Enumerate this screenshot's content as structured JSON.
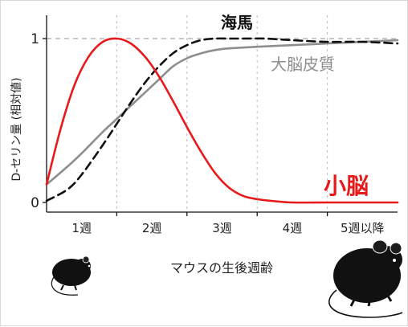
{
  "chart_data": {
    "type": "line",
    "xlabel": "マウスの生後週齢",
    "ylabel": "D-セリン量 (相対値)",
    "x_ticks": [
      "1週",
      "2週",
      "3週",
      "4週",
      "5週以降"
    ],
    "y_ticks": [
      "0",
      "1"
    ],
    "ylim": [
      0,
      1
    ],
    "xlim": [
      0.5,
      5.5
    ],
    "grid": "vertical dashed at week boundaries, horizontal dashed at y=1",
    "series": [
      {
        "name": "小脳",
        "color": "#e8191a",
        "style": "solid",
        "x": [
          0.5,
          0.7,
          0.9,
          1.1,
          1.3,
          1.5,
          1.7,
          1.9,
          2.1,
          2.3,
          2.5,
          2.7,
          2.9,
          3.1,
          3.3,
          3.5,
          3.7,
          4.0,
          4.5,
          5.0,
          5.5
        ],
        "y": [
          0.11,
          0.45,
          0.72,
          0.89,
          0.98,
          1.0,
          0.97,
          0.89,
          0.77,
          0.62,
          0.46,
          0.31,
          0.18,
          0.09,
          0.04,
          0.02,
          0.01,
          0.0,
          0.0,
          0.0,
          0.0
        ]
      },
      {
        "name": "海馬",
        "color": "#111111",
        "style": "dashed",
        "x": [
          0.5,
          0.8,
          1.0,
          1.3,
          1.5,
          1.7,
          1.9,
          2.1,
          2.3,
          2.5,
          2.7,
          2.9,
          3.1,
          3.3,
          3.6,
          4.0,
          4.5,
          5.0,
          5.5
        ],
        "y": [
          0.01,
          0.08,
          0.17,
          0.35,
          0.48,
          0.61,
          0.73,
          0.83,
          0.91,
          0.96,
          0.99,
          1.0,
          1.0,
          1.0,
          1.0,
          0.99,
          0.98,
          0.98,
          0.97
        ]
      },
      {
        "name": "大脳皮質",
        "color": "#8e8e8e",
        "style": "solid",
        "x": [
          0.5,
          0.8,
          1.0,
          1.3,
          1.5,
          1.7,
          1.9,
          2.1,
          2.3,
          2.5,
          2.7,
          2.9,
          3.1,
          3.5,
          4.0,
          4.5,
          5.0,
          5.5
        ],
        "y": [
          0.11,
          0.22,
          0.3,
          0.43,
          0.51,
          0.59,
          0.67,
          0.75,
          0.83,
          0.88,
          0.91,
          0.93,
          0.94,
          0.95,
          0.96,
          0.97,
          0.98,
          0.99
        ]
      }
    ]
  },
  "icons": {
    "left": "young-mouse-icon",
    "right": "adult-mouse-icon"
  }
}
